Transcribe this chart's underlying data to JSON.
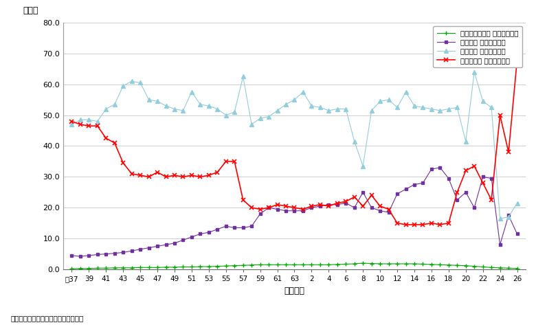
{
  "xlabel": "（年度）",
  "ylabel": "（％）",
  "source": "出典：各省庁資料をもとに内閣府作成",
  "xlabels": [
    "映37",
    "39",
    "41",
    "43",
    "45",
    "47",
    "49",
    "51",
    "53",
    "55",
    "57",
    "59",
    "61",
    "63",
    "2",
    "4",
    "6",
    "8",
    "10",
    "12",
    "14",
    "16",
    "18",
    "20",
    "22",
    "24",
    "26"
  ],
  "ylim": [
    0.0,
    80.0
  ],
  "yticks": [
    0.0,
    10.0,
    20.0,
    30.0,
    40.0,
    50.0,
    60.0,
    70.0,
    80.0
  ],
  "science_label": "科学技術の研究 シェア（％）",
  "yobo_label": "災害予防 シェア（％）",
  "kokudo_label": "国土保全 シェア（％）",
  "fukuyu_label": "災害復旧等 シェア（％）",
  "science_color": "#00AA00",
  "yobo_color": "#7030A0",
  "kokudo_color": "#92CDDC",
  "fukuyu_color": "#FF0000",
  "science": [
    0.2,
    0.3,
    0.3,
    0.4,
    0.4,
    0.5,
    0.5,
    0.5,
    0.6,
    0.6,
    0.6,
    0.7,
    0.7,
    0.8,
    0.8,
    0.9,
    0.9,
    1.0,
    1.1,
    1.2,
    1.3,
    1.4,
    1.5,
    1.5,
    1.5,
    1.5,
    1.5,
    1.5,
    1.5,
    1.5,
    1.5,
    1.6,
    1.7,
    1.8,
    2.0,
    1.9,
    1.8,
    1.8,
    1.8,
    1.8,
    1.8,
    1.7,
    1.6,
    1.5,
    1.4,
    1.3,
    1.2,
    1.0,
    0.8,
    0.6,
    0.5,
    0.4,
    0.3
  ],
  "yobo": [
    4.5,
    4.2,
    4.5,
    4.8,
    5.0,
    5.2,
    5.5,
    6.0,
    6.5,
    7.0,
    7.5,
    8.0,
    8.5,
    9.5,
    10.5,
    11.5,
    12.0,
    13.0,
    14.0,
    13.5,
    13.5,
    14.0,
    18.0,
    20.0,
    19.5,
    19.0,
    19.0,
    19.0,
    20.0,
    20.5,
    21.0,
    21.0,
    21.5,
    20.0,
    25.0,
    20.0,
    19.0,
    18.5,
    24.5,
    26.0,
    27.5,
    28.0,
    32.5,
    33.0,
    29.5,
    22.5,
    25.0,
    20.0,
    30.0,
    29.5,
    8.0,
    17.5,
    11.5
  ],
  "kokudo": [
    47.0,
    48.5,
    48.5,
    48.0,
    52.0,
    53.5,
    59.5,
    61.0,
    60.5,
    55.0,
    54.5,
    53.0,
    52.0,
    51.5,
    57.5,
    53.5,
    53.0,
    52.0,
    50.0,
    51.0,
    62.5,
    47.0,
    49.0,
    49.5,
    51.5,
    53.5,
    55.0,
    57.5,
    53.0,
    52.5,
    51.5,
    52.0,
    52.0,
    41.5,
    33.5,
    51.5,
    54.5,
    55.0,
    52.5,
    57.5,
    53.0,
    52.5,
    52.0,
    51.5,
    52.0,
    52.5,
    41.5,
    64.0,
    54.5,
    52.5,
    16.5,
    17.0,
    21.5
  ],
  "fukuyu": [
    48.0,
    47.0,
    46.5,
    46.5,
    42.5,
    41.0,
    34.5,
    31.0,
    30.5,
    30.0,
    31.5,
    30.0,
    30.5,
    30.0,
    30.5,
    30.0,
    30.5,
    31.5,
    35.0,
    35.0,
    22.5,
    20.0,
    19.5,
    20.0,
    21.0,
    20.5,
    20.0,
    19.5,
    20.5,
    21.0,
    20.5,
    21.5,
    22.0,
    23.5,
    20.5,
    24.0,
    20.5,
    19.5,
    15.0,
    14.5,
    14.5,
    14.5,
    15.0,
    14.5,
    15.0,
    25.0,
    32.0,
    33.5,
    28.0,
    22.5,
    50.0,
    38.0,
    68.0
  ]
}
